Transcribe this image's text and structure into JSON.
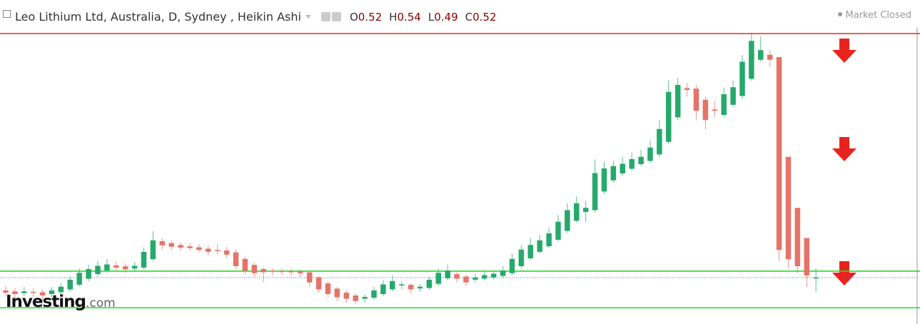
{
  "chart_data": {
    "type": "candlestick",
    "title": "Leo Lithium Ltd, Australia, D, Sydney , Heikin Ashi",
    "header_ohlc": [
      {
        "label": "O",
        "value": 0.52
      },
      {
        "label": "H",
        "value": 0.54
      },
      {
        "label": "L",
        "value": 0.49
      },
      {
        "label": "C",
        "value": 0.52
      }
    ],
    "status": "Market Closed",
    "watermark": {
      "brand": "Investing",
      "suffix": ".com"
    },
    "ylim": [
      0.42,
      1.06
    ],
    "up_color": "#26a96c",
    "down_color": "#e57368",
    "open": [
      0.492,
      0.49,
      0.487,
      0.489,
      0.488,
      0.485,
      0.489,
      0.495,
      0.505,
      0.518,
      0.528,
      0.536,
      0.546,
      0.544,
      0.54,
      0.542,
      0.56,
      0.598,
      0.594,
      0.59,
      0.587,
      0.585,
      0.582,
      0.579,
      0.578,
      0.574,
      0.56,
      0.547,
      0.538,
      0.535,
      0.534,
      0.534,
      0.533,
      0.531,
      0.52,
      0.507,
      0.496,
      0.487,
      0.481,
      0.475,
      0.477,
      0.485,
      0.495,
      0.504,
      0.504,
      0.497,
      0.498,
      0.507,
      0.519,
      0.527,
      0.522,
      0.516,
      0.518,
      0.521,
      0.524,
      0.53,
      0.545,
      0.562,
      0.576,
      0.588,
      0.602,
      0.621,
      0.643,
      0.662,
      0.666,
      0.706,
      0.73,
      0.745,
      0.755,
      0.765,
      0.772,
      0.786,
      0.813,
      0.866,
      0.928,
      0.927,
      0.903,
      0.882,
      0.871,
      0.893,
      0.912,
      0.949,
      0.99,
      1.0,
      0.995,
      0.78,
      0.67,
      0.605,
      0.52
    ],
    "high": [
      0.502,
      0.498,
      0.5,
      0.497,
      0.495,
      0.5,
      0.508,
      0.522,
      0.54,
      0.548,
      0.556,
      0.56,
      0.555,
      0.55,
      0.554,
      0.585,
      0.62,
      0.605,
      0.6,
      0.596,
      0.594,
      0.592,
      0.59,
      0.592,
      0.586,
      0.58,
      0.565,
      0.552,
      0.542,
      0.54,
      0.54,
      0.54,
      0.538,
      0.535,
      0.524,
      0.512,
      0.5,
      0.492,
      0.486,
      0.484,
      0.5,
      0.515,
      0.525,
      0.512,
      0.508,
      0.506,
      0.522,
      0.54,
      0.548,
      0.532,
      0.526,
      0.528,
      0.534,
      0.536,
      0.545,
      0.572,
      0.59,
      0.605,
      0.612,
      0.628,
      0.655,
      0.68,
      0.695,
      0.685,
      0.775,
      0.77,
      0.772,
      0.78,
      0.79,
      0.795,
      0.815,
      0.86,
      0.945,
      0.95,
      0.94,
      0.935,
      0.91,
      0.9,
      0.93,
      0.945,
      1.0,
      1.048,
      1.04,
      1.01,
      0.995,
      0.78,
      0.67,
      0.605,
      0.54
    ],
    "low": [
      0.478,
      0.476,
      0.48,
      0.478,
      0.472,
      0.478,
      0.482,
      0.49,
      0.5,
      0.512,
      0.522,
      0.53,
      0.535,
      0.53,
      0.534,
      0.538,
      0.555,
      0.58,
      0.58,
      0.578,
      0.578,
      0.574,
      0.568,
      0.57,
      0.562,
      0.538,
      0.528,
      0.522,
      0.51,
      0.525,
      0.526,
      0.524,
      0.52,
      0.5,
      0.488,
      0.478,
      0.47,
      0.466,
      0.462,
      0.466,
      0.472,
      0.48,
      0.49,
      0.495,
      0.486,
      0.49,
      0.494,
      0.502,
      0.514,
      0.51,
      0.502,
      0.51,
      0.514,
      0.516,
      0.52,
      0.526,
      0.54,
      0.558,
      0.572,
      0.584,
      0.598,
      0.616,
      0.638,
      0.64,
      0.66,
      0.7,
      0.725,
      0.74,
      0.75,
      0.76,
      0.768,
      0.78,
      0.808,
      0.86,
      0.91,
      0.86,
      0.84,
      0.865,
      0.866,
      0.888,
      0.906,
      0.944,
      0.985,
      0.975,
      0.555,
      0.54,
      0.53,
      0.5,
      0.49
    ],
    "close": [
      0.488,
      0.485,
      0.49,
      0.488,
      0.482,
      0.492,
      0.5,
      0.515,
      0.53,
      0.538,
      0.545,
      0.548,
      0.542,
      0.538,
      0.545,
      0.575,
      0.6,
      0.59,
      0.587,
      0.585,
      0.584,
      0.58,
      0.576,
      0.578,
      0.57,
      0.545,
      0.535,
      0.53,
      0.532,
      0.534,
      0.533,
      0.532,
      0.53,
      0.51,
      0.495,
      0.485,
      0.478,
      0.475,
      0.47,
      0.478,
      0.492,
      0.505,
      0.512,
      0.505,
      0.495,
      0.5,
      0.515,
      0.53,
      0.535,
      0.518,
      0.51,
      0.52,
      0.525,
      0.528,
      0.535,
      0.56,
      0.58,
      0.59,
      0.6,
      0.615,
      0.64,
      0.665,
      0.68,
      0.67,
      0.745,
      0.755,
      0.76,
      0.765,
      0.775,
      0.78,
      0.8,
      0.84,
      0.92,
      0.935,
      0.925,
      0.88,
      0.86,
      0.88,
      0.915,
      0.93,
      0.985,
      1.03,
      1.01,
      0.99,
      0.58,
      0.56,
      0.545,
      0.525,
      0.52
    ],
    "hlines": [
      {
        "value": 1.046,
        "color": "#e53935",
        "style": "solid"
      },
      {
        "value": 0.534,
        "color": "#22dd22",
        "style": "solid"
      },
      {
        "value": 0.455,
        "color": "#22dd22",
        "style": "solid"
      },
      {
        "value": 0.52,
        "color": "#3b6fd6",
        "style": "dotted"
      }
    ]
  }
}
